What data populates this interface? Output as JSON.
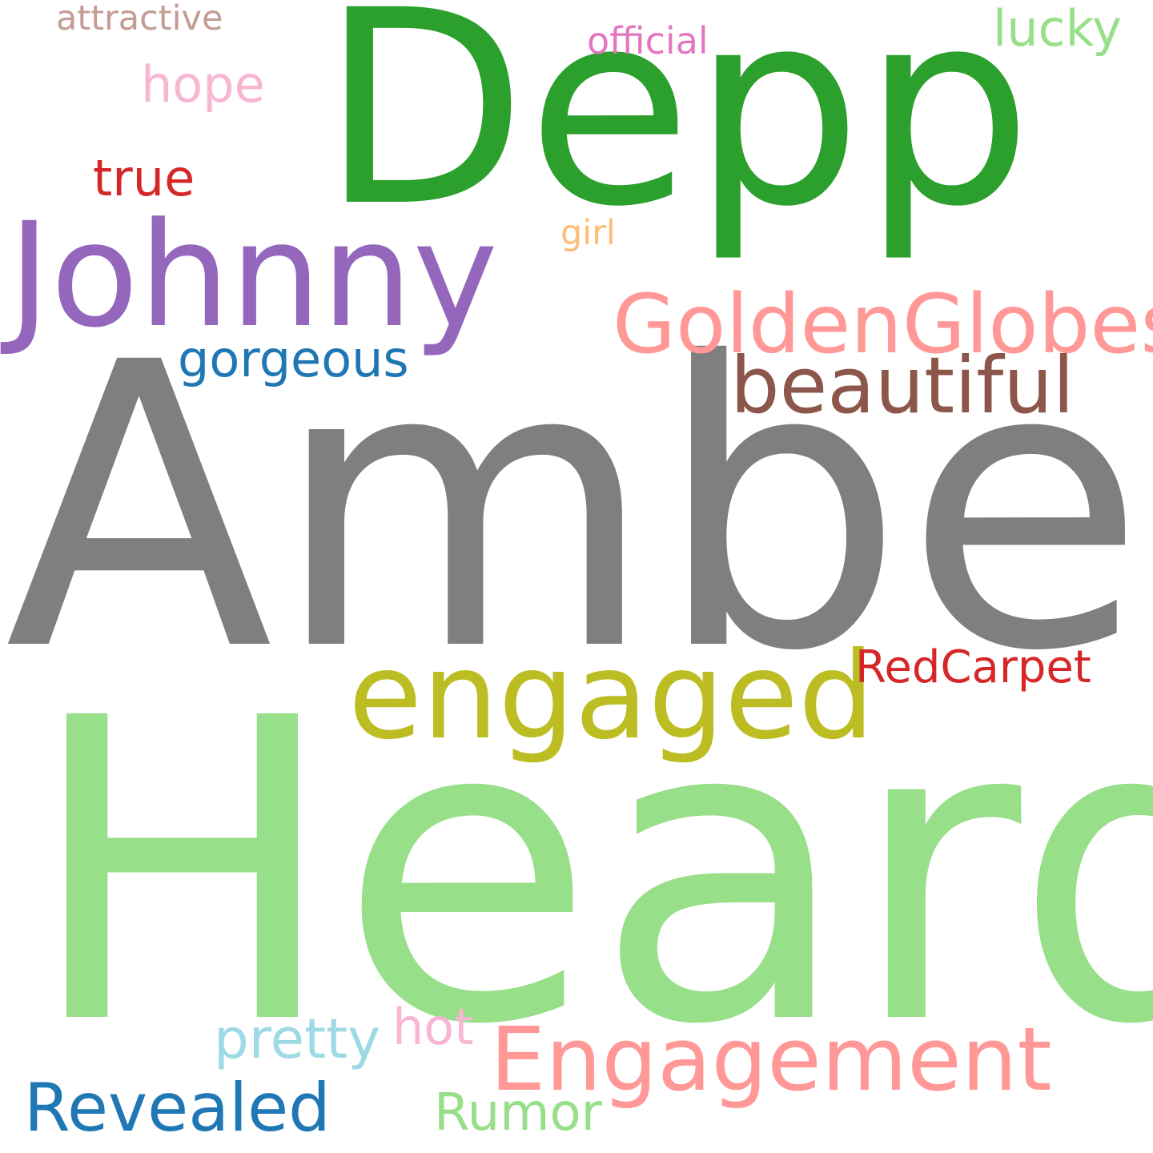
{
  "wordcloud": {
    "background": "#ffffff",
    "words": [
      {
        "text": "Amber",
        "color": "#7f7f7f"
      },
      {
        "text": "Heard",
        "color": "#98df8a"
      },
      {
        "text": "Depp",
        "color": "#2ca02c"
      },
      {
        "text": "Johnny",
        "color": "#9467bd"
      },
      {
        "text": "engaged",
        "color": "#bcbd22"
      },
      {
        "text": "Engagement",
        "color": "#ff9896"
      },
      {
        "text": "GoldenGlobes",
        "color": "#ff9896"
      },
      {
        "text": "beautiful",
        "color": "#8c564b"
      },
      {
        "text": "Revealed",
        "color": "#1f77b4"
      },
      {
        "text": "gorgeous",
        "color": "#1f77b4"
      },
      {
        "text": "RedCarpet",
        "color": "#d62728"
      },
      {
        "text": "true",
        "color": "#d62728"
      },
      {
        "text": "pretty",
        "color": "#9edae5"
      },
      {
        "text": "Rumor",
        "color": "#98df8a"
      },
      {
        "text": "hot",
        "color": "#f7b6d2"
      },
      {
        "text": "hope",
        "color": "#f7b6d2"
      },
      {
        "text": "lucky",
        "color": "#98df8a"
      },
      {
        "text": "attractive",
        "color": "#c49c94"
      },
      {
        "text": "official",
        "color": "#e377c2"
      },
      {
        "text": "girl",
        "color": "#ffbb78"
      }
    ]
  }
}
